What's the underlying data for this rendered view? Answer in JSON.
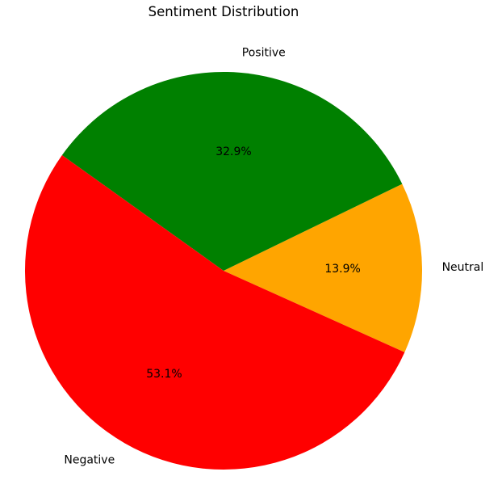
{
  "chart_data": {
    "type": "pie",
    "title": "Sentiment Distribution",
    "slices": [
      {
        "label": "Neutral",
        "value": 13.9,
        "pct_label": "13.9%",
        "color": "#FFA500"
      },
      {
        "label": "Positive",
        "value": 32.9,
        "pct_label": "32.9%",
        "color": "#008000"
      },
      {
        "label": "Negative",
        "value": 53.1,
        "pct_label": "53.1%",
        "color": "#FF0000"
      }
    ],
    "start_angle_deg": -24.2,
    "direction": "counterclockwise",
    "legend": "none"
  }
}
